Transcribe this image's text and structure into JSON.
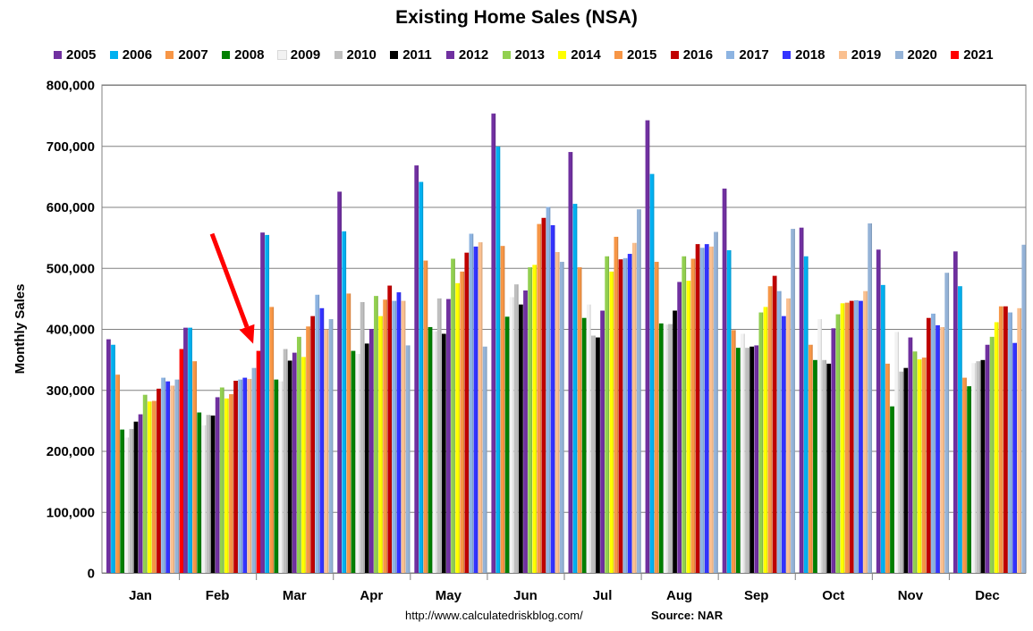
{
  "chart_data": {
    "type": "bar",
    "title": "Existing Home Sales (NSA)",
    "xlabel": "",
    "ylabel": "Monthly Sales",
    "ylim": [
      0,
      800000
    ],
    "yticks": [
      0,
      100000,
      200000,
      300000,
      400000,
      500000,
      600000,
      700000,
      800000
    ],
    "ytick_labels": [
      "0",
      "100,000",
      "200,000",
      "300,000",
      "400,000",
      "500,000",
      "600,000",
      "700,000",
      "800,000"
    ],
    "grid": true,
    "legend_position": "top",
    "categories": [
      "Jan",
      "Feb",
      "Mar",
      "Apr",
      "May",
      "Jun",
      "Jul",
      "Aug",
      "Sep",
      "Oct",
      "Nov",
      "Dec"
    ],
    "series": [
      {
        "name": "2005",
        "color": "#7030A0",
        "values": [
          383000,
          402000,
          558000,
          625000,
          668000,
          753000,
          690000,
          742000,
          630000,
          566000,
          530000,
          527000
        ]
      },
      {
        "name": "2006",
        "color": "#00B0F0",
        "values": [
          374000,
          402000,
          554000,
          560000,
          641000,
          699000,
          605000,
          654000,
          529000,
          519000,
          472000,
          470000
        ]
      },
      {
        "name": "2007",
        "color": "#F79646",
        "values": [
          325000,
          347000,
          436000,
          458000,
          512000,
          536000,
          501000,
          510000,
          398000,
          374000,
          343000,
          320000
        ]
      },
      {
        "name": "2008",
        "color": "#008000",
        "values": [
          235000,
          263000,
          317000,
          364000,
          403000,
          420000,
          418000,
          409000,
          369000,
          349000,
          273000,
          306000
        ]
      },
      {
        "name": "2009",
        "color": "#F2F2F2",
        "values": [
          222000,
          242000,
          314000,
          359000,
          396000,
          452000,
          440000,
          407000,
          392000,
          416000,
          395000,
          344000
        ]
      },
      {
        "name": "2010",
        "color": "#BFBFBF",
        "values": [
          236000,
          259000,
          367000,
          444000,
          450000,
          473000,
          389000,
          408000,
          369000,
          349000,
          330000,
          347000
        ]
      },
      {
        "name": "2011",
        "color": "#000000",
        "values": [
          248000,
          258000,
          348000,
          376000,
          392000,
          440000,
          386000,
          430000,
          371000,
          343000,
          336000,
          349000
        ]
      },
      {
        "name": "2012",
        "color": "#7030A0",
        "values": [
          260000,
          288000,
          361000,
          400000,
          449000,
          463000,
          430000,
          477000,
          373000,
          401000,
          386000,
          374000
        ]
      },
      {
        "name": "2013",
        "color": "#92D050",
        "values": [
          292000,
          304000,
          387000,
          454000,
          515000,
          501000,
          519000,
          519000,
          427000,
          424000,
          363000,
          387000
        ]
      },
      {
        "name": "2014",
        "color": "#FFFF00",
        "values": [
          281000,
          286000,
          354000,
          421000,
          475000,
          505000,
          494000,
          479000,
          436000,
          442000,
          350000,
          411000
        ]
      },
      {
        "name": "2015",
        "color": "#F79646",
        "values": [
          282000,
          293000,
          404000,
          448000,
          494000,
          572000,
          551000,
          515000,
          470000,
          443000,
          353000,
          437000
        ]
      },
      {
        "name": "2016",
        "color": "#C00000",
        "values": [
          302000,
          315000,
          421000,
          471000,
          525000,
          582000,
          514000,
          539000,
          487000,
          446000,
          418000,
          437000
        ]
      },
      {
        "name": "2017",
        "color": "#8DB4E2",
        "values": [
          320000,
          317000,
          456000,
          446000,
          556000,
          600000,
          516000,
          533000,
          462000,
          447000,
          425000,
          427000
        ]
      },
      {
        "name": "2018",
        "color": "#3333FF",
        "values": [
          314000,
          320000,
          434000,
          460000,
          535000,
          570000,
          523000,
          539000,
          421000,
          446000,
          406000,
          377000
        ]
      },
      {
        "name": "2019",
        "color": "#FAC090",
        "values": [
          307000,
          318000,
          399000,
          446000,
          542000,
          526000,
          541000,
          535000,
          450000,
          462000,
          403000,
          434000
        ]
      },
      {
        "name": "2020",
        "color": "#95B3D7",
        "values": [
          317000,
          336000,
          416000,
          373000,
          371000,
          510000,
          596000,
          559000,
          564000,
          573000,
          492000,
          538000
        ]
      },
      {
        "name": "2021",
        "color": "#FF0000",
        "values": [
          367000,
          364000,
          null,
          null,
          null,
          null,
          null,
          null,
          null,
          null,
          null,
          null
        ]
      }
    ],
    "annotations": [
      {
        "type": "arrow",
        "color": "#FF0000",
        "points_to": {
          "category": "Feb",
          "series": "2021"
        }
      }
    ]
  },
  "footer": {
    "url": "http://www.calculatedriskblog.com/",
    "source": "Source: NAR"
  }
}
